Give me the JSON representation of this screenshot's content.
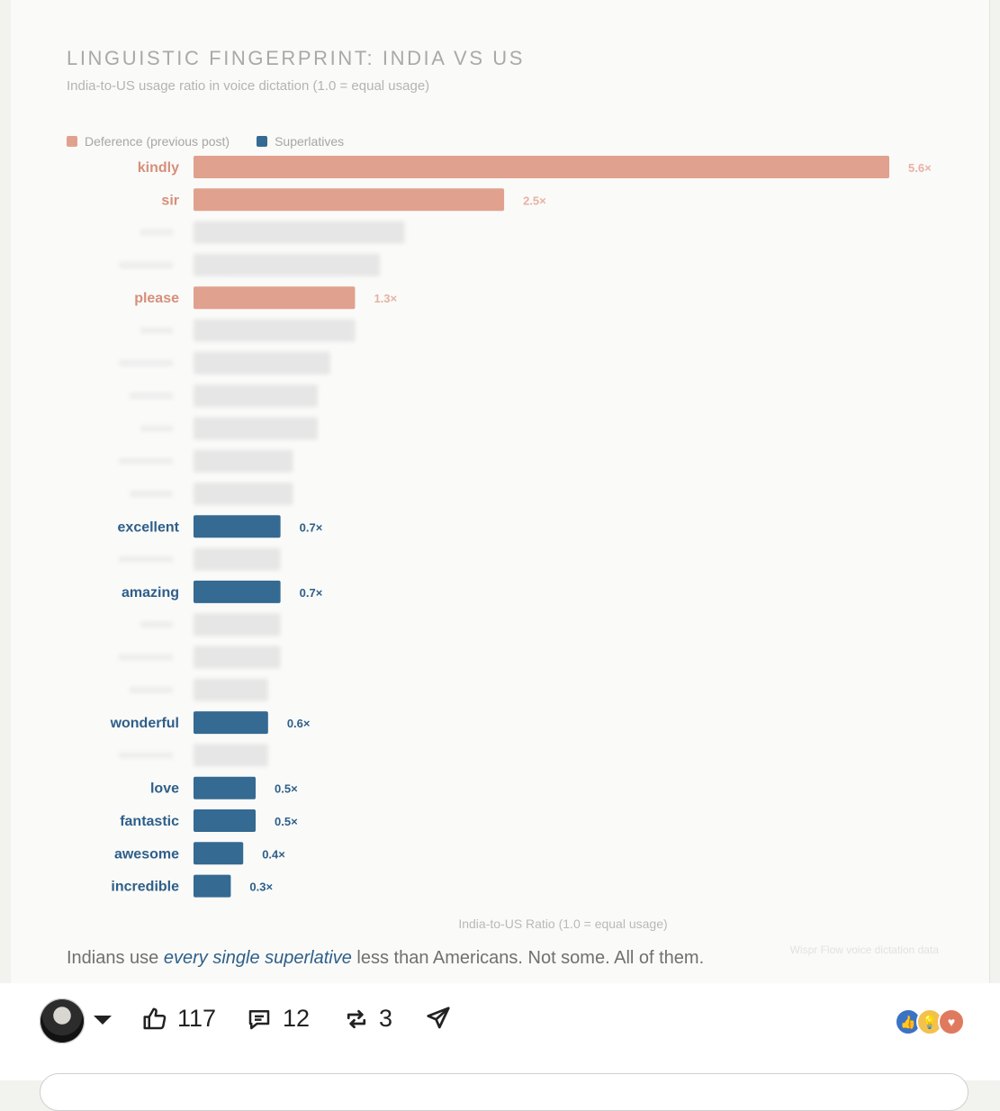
{
  "title": "LINGUISTIC FINGERPRINT: INDIA VS US",
  "subtitle": "India-to-US usage ratio in voice dictation (1.0 = equal usage)",
  "legend": [
    {
      "label": "Deference (previous post)",
      "color": "#e0a18e"
    },
    {
      "label": "Superlatives",
      "color": "#356a92"
    }
  ],
  "colors": {
    "deference": "#e0a18e",
    "superlative": "#356a92",
    "blurred": "#e6e6e6"
  },
  "chart_data": {
    "type": "bar",
    "orientation": "horizontal",
    "xlabel": "India-to-US Ratio (1.0 = equal usage)",
    "xlim": [
      0,
      5.6
    ],
    "grid": false,
    "legend_position": "top-left",
    "bars": [
      {
        "label": "kindly",
        "value": 5.6,
        "value_label": "5.6×",
        "group": "deference"
      },
      {
        "label": "sir",
        "value": 2.5,
        "value_label": "2.5×",
        "group": "deference"
      },
      {
        "label": "",
        "value": 1.7,
        "value_label": "",
        "group": "blurred"
      },
      {
        "label": "",
        "value": 1.5,
        "value_label": "",
        "group": "blurred"
      },
      {
        "label": "please",
        "value": 1.3,
        "value_label": "1.3×",
        "group": "deference"
      },
      {
        "label": "",
        "value": 1.3,
        "value_label": "",
        "group": "blurred"
      },
      {
        "label": "",
        "value": 1.1,
        "value_label": "",
        "group": "blurred"
      },
      {
        "label": "",
        "value": 1.0,
        "value_label": "",
        "group": "blurred"
      },
      {
        "label": "",
        "value": 1.0,
        "value_label": "",
        "group": "blurred"
      },
      {
        "label": "",
        "value": 0.8,
        "value_label": "",
        "group": "blurred"
      },
      {
        "label": "",
        "value": 0.8,
        "value_label": "",
        "group": "blurred"
      },
      {
        "label": "excellent",
        "value": 0.7,
        "value_label": "0.7×",
        "group": "superlative"
      },
      {
        "label": "",
        "value": 0.7,
        "value_label": "",
        "group": "blurred"
      },
      {
        "label": "amazing",
        "value": 0.7,
        "value_label": "0.7×",
        "group": "superlative"
      },
      {
        "label": "",
        "value": 0.7,
        "value_label": "",
        "group": "blurred"
      },
      {
        "label": "",
        "value": 0.7,
        "value_label": "",
        "group": "blurred"
      },
      {
        "label": "",
        "value": 0.6,
        "value_label": "",
        "group": "blurred"
      },
      {
        "label": "wonderful",
        "value": 0.6,
        "value_label": "0.6×",
        "group": "superlative"
      },
      {
        "label": "",
        "value": 0.6,
        "value_label": "",
        "group": "blurred"
      },
      {
        "label": "love",
        "value": 0.5,
        "value_label": "0.5×",
        "group": "superlative"
      },
      {
        "label": "fantastic",
        "value": 0.5,
        "value_label": "0.5×",
        "group": "superlative"
      },
      {
        "label": "awesome",
        "value": 0.4,
        "value_label": "0.4×",
        "group": "superlative"
      },
      {
        "label": "incredible",
        "value": 0.3,
        "value_label": "0.3×",
        "group": "superlative"
      }
    ]
  },
  "source": "Wispr Flow voice dictation data",
  "caption": {
    "before": "Indians use ",
    "emphasis": "every single superlative",
    "after": " less than Americans. Not some. All of them."
  },
  "footer": {
    "likes": "117",
    "comments": "12",
    "reposts": "3",
    "reaction_icons": [
      "thumbs-up-icon",
      "lightbulb-icon",
      "heart-icon"
    ]
  }
}
